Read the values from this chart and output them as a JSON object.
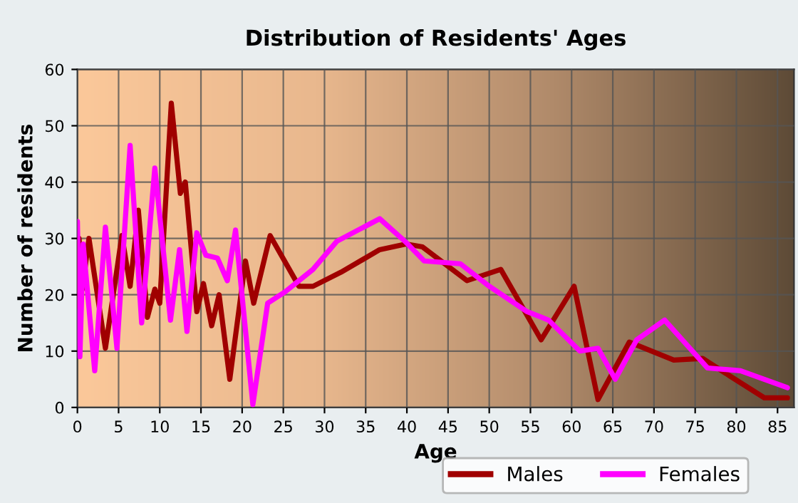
{
  "chart_data": {
    "type": "line",
    "title": "Distribution of Residents' Ages",
    "xlabel": "Age",
    "ylabel": "Number of residents",
    "xlim": [
      0,
      87
    ],
    "ylim": [
      0,
      60
    ],
    "xticks": [
      0,
      5,
      10,
      15,
      20,
      25,
      30,
      35,
      40,
      45,
      50,
      55,
      60,
      65,
      70,
      75,
      80,
      85
    ],
    "yticks": [
      0,
      10,
      20,
      30,
      40,
      50,
      60
    ],
    "grid": true,
    "legend": "bottom",
    "marker": "none",
    "line_style": "solid",
    "series": [
      {
        "name": "Males",
        "color": "#a00000",
        "x": [
          0,
          0.2,
          0.6,
          1.4,
          3.4,
          5.4,
          6.4,
          7.4,
          8.5,
          9.4,
          10,
          11.4,
          12.5,
          13.1,
          14.5,
          15.3,
          16.3,
          17.2,
          18.5,
          20.4,
          21.4,
          23.4,
          26.9,
          28.6,
          32,
          36.7,
          39.9,
          41.9,
          47.3,
          51.4,
          56.3,
          60.3,
          63.2,
          67,
          72.4,
          75.9,
          79.3,
          83.4,
          86.2
        ],
        "values": [
          18,
          30,
          21,
          30,
          10.5,
          30.5,
          21.5,
          35,
          16,
          21,
          18.5,
          54,
          38,
          40,
          17,
          22,
          14.5,
          20,
          5,
          26,
          18.5,
          30.5,
          21.5,
          21.5,
          24,
          28,
          29,
          28.5,
          22.5,
          24.5,
          12,
          21.5,
          1.4,
          11.6,
          8.4,
          8.7,
          5.5,
          1.7,
          1.7
        ]
      },
      {
        "name": "Females",
        "color": "#ff00ff",
        "x": [
          0,
          0.3,
          0.7,
          2.1,
          3.4,
          4.8,
          6.4,
          7.8,
          9.4,
          11.3,
          12.4,
          13.3,
          14.5,
          15.6,
          17,
          18.2,
          19.2,
          21.3,
          23.1,
          25.2,
          28.6,
          31.5,
          36.7,
          39.9,
          42.1,
          46.5,
          50,
          54.6,
          57.2,
          61,
          63.2,
          65.3,
          67.9,
          71.3,
          76.5,
          80.5,
          86.2
        ],
        "values": [
          33,
          9,
          29,
          6.5,
          32,
          10.5,
          46.5,
          15,
          42.5,
          15.5,
          28,
          13.5,
          31,
          27,
          26.5,
          22.5,
          31.5,
          0.5,
          18.5,
          20.5,
          24.5,
          29.5,
          33.5,
          29.3,
          26,
          25.5,
          21.5,
          17,
          15.5,
          10,
          10.5,
          5,
          12,
          15.5,
          7,
          6.5,
          3.5
        ]
      }
    ]
  }
}
